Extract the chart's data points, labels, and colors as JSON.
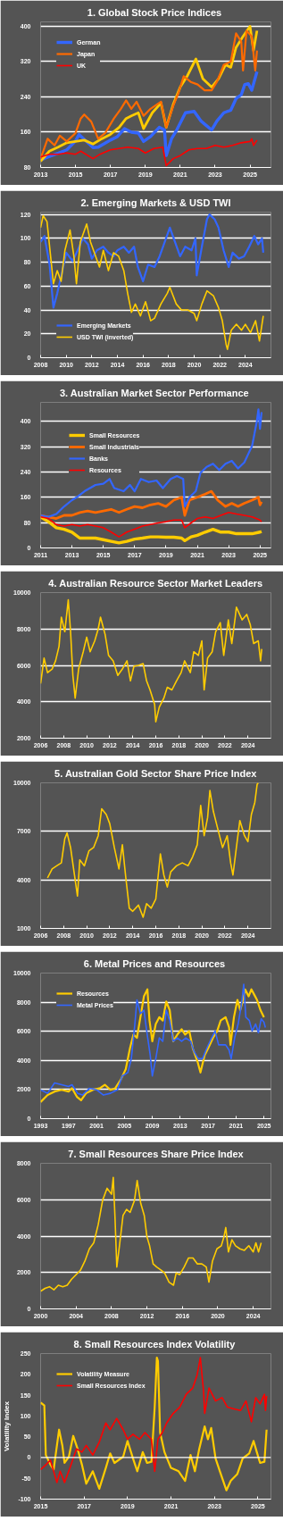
{
  "chart_data": [
    {
      "type": "line",
      "title": "1.  Global Stock Price Indices",
      "xlim": [
        2013,
        2026.2
      ],
      "xticks": [
        2013,
        2015,
        2017,
        2019,
        2021,
        2023,
        2025
      ],
      "ylim": [
        80,
        410
      ],
      "yticks": [
        80,
        160,
        240,
        320,
        400
      ],
      "grid": "y",
      "legend": "top left",
      "series": [
        {
          "name": "German",
          "color": "#3366ff",
          "x": [
            2013.0,
            2013.5,
            2014.0,
            2014.5,
            2015.0,
            2015.2,
            2015.6,
            2016.0,
            2016.3,
            2016.7,
            2017.0,
            2017.4,
            2017.8,
            2018.2,
            2018.6,
            2018.9,
            2019.3,
            2019.8,
            2020.1,
            2020.2,
            2020.5,
            2020.8,
            2021.3,
            2021.8,
            2022.2,
            2022.5,
            2022.8,
            2023.1,
            2023.5,
            2023.9,
            2024.2,
            2024.5,
            2024.7,
            2024.9,
            2025.1,
            2025.4
          ],
          "values": [
            97,
            105,
            112,
            120,
            140,
            155,
            140,
            125,
            126,
            135,
            142,
            150,
            168,
            160,
            158,
            139,
            150,
            171,
            165,
            107,
            145,
            165,
            204,
            207,
            185,
            175,
            165,
            185,
            204,
            210,
            236,
            245,
            268,
            270,
            255,
            297
          ]
        },
        {
          "color": "#ffcc00",
          "x": [
            2013.0,
            2013.5,
            2014.0,
            2014.5,
            2015.0,
            2015.5,
            2016.0,
            2016.5,
            2017.0,
            2017.5,
            2017.9,
            2018.2,
            2018.6,
            2018.9,
            2019.4,
            2019.9,
            2020.2,
            2020.6,
            2021.0,
            2021.4,
            2021.9,
            2022.3,
            2022.8,
            2023.2,
            2023.6,
            2023.9,
            2024.2,
            2024.6,
            2025.0,
            2025.2,
            2025.4
          ],
          "values": [
            94,
            117,
            126,
            136,
            139,
            142,
            133,
            145,
            155,
            171,
            191,
            197,
            204,
            168,
            204,
            226,
            171,
            223,
            262,
            287,
            326,
            281,
            262,
            281,
            313,
            307,
            352,
            377,
            400,
            345,
            390
          ]
        },
        {
          "name": "Japan",
          "color": "#ff6a00",
          "x": [
            2013.0,
            2013.4,
            2013.8,
            2014.1,
            2014.5,
            2015.0,
            2015.3,
            2015.5,
            2015.9,
            2016.3,
            2016.7,
            2017.2,
            2017.6,
            2017.9,
            2018.2,
            2018.5,
            2018.9,
            2019.3,
            2019.9,
            2020.2,
            2020.6,
            2020.9,
            2021.2,
            2021.6,
            2022.0,
            2022.4,
            2022.8,
            2023.1,
            2023.5,
            2023.9,
            2024.2,
            2024.5,
            2024.6,
            2024.8,
            2025.1,
            2025.3,
            2025.4
          ],
          "values": [
            100,
            145,
            130,
            152,
            139,
            158,
            191,
            200,
            184,
            145,
            158,
            191,
            213,
            232,
            213,
            229,
            197,
            213,
            229,
            171,
            220,
            249,
            287,
            274,
            268,
            255,
            255,
            274,
            313,
            320,
            384,
            365,
            300,
            390,
            377,
            300,
            345
          ]
        },
        {
          "name": "UK",
          "color": "#ff0000",
          "x": [
            2013.0,
            2013.5,
            2014.0,
            2014.5,
            2015.0,
            2015.3,
            2016.0,
            2016.4,
            2017.0,
            2017.5,
            2018.0,
            2018.6,
            2019.0,
            2019.5,
            2020.0,
            2020.2,
            2020.6,
            2021.0,
            2021.5,
            2022.0,
            2022.5,
            2023.0,
            2023.5,
            2024.0,
            2024.5,
            2025.0,
            2025.1,
            2025.2,
            2025.4
          ],
          "values": [
            104,
            110,
            110,
            113,
            110,
            117,
            100,
            110,
            120,
            123,
            126,
            123,
            113,
            123,
            126,
            84,
            100,
            107,
            120,
            123,
            123,
            130,
            126,
            130,
            136,
            139,
            145,
            130,
            142
          ]
        }
      ]
    },
    {
      "type": "line",
      "title": "2. Emerging Markets & USD TWI",
      "xlim": [
        2008,
        2026
      ],
      "xticks": [
        2008,
        2010,
        2012,
        2014,
        2016,
        2018,
        2020,
        2022,
        2024
      ],
      "ylim": [
        0,
        122
      ],
      "yticks": [
        0,
        20,
        40,
        60,
        80,
        100,
        120
      ],
      "grid": "y",
      "legend": "bottom left",
      "series": [
        {
          "name": "Emerging Markets",
          "color": "#3366ff",
          "x": [
            2008.0,
            2008.3,
            2008.7,
            2009.0,
            2009.3,
            2009.7,
            2010.0,
            2010.5,
            2010.9,
            2011.3,
            2011.7,
            2012.0,
            2012.4,
            2012.9,
            2013.3,
            2013.7,
            2014.0,
            2014.5,
            2014.9,
            2015.3,
            2015.6,
            2016.0,
            2016.4,
            2016.9,
            2017.3,
            2017.8,
            2018.1,
            2018.5,
            2018.9,
            2019.3,
            2019.8,
            2020.1,
            2020.2,
            2020.6,
            2021.0,
            2021.2,
            2021.6,
            2021.9,
            2022.3,
            2022.7,
            2023.0,
            2023.5,
            2023.9,
            2024.3,
            2024.7,
            2025.0,
            2025.3,
            2025.4
          ],
          "values": [
            97,
            102,
            78,
            42,
            54,
            73,
            88,
            81,
            90,
            100,
            95,
            83,
            90,
            93,
            88,
            85,
            90,
            93,
            88,
            93,
            76,
            64,
            78,
            76,
            85,
            100,
            109,
            97,
            85,
            93,
            90,
            100,
            69,
            93,
            116,
            120,
            116,
            109,
            90,
            76,
            88,
            83,
            85,
            93,
            102,
            95,
            100,
            88
          ]
        },
        {
          "name": "USD TWI (inverted)",
          "color": "#ffcc00",
          "x": [
            2008.0,
            2008.2,
            2008.5,
            2008.8,
            2009.0,
            2009.3,
            2009.6,
            2009.9,
            2010.3,
            2010.6,
            2010.8,
            2011.1,
            2011.6,
            2011.9,
            2012.2,
            2012.6,
            2012.9,
            2013.3,
            2013.7,
            2014.1,
            2014.5,
            2014.8,
            2015.1,
            2015.4,
            2015.8,
            2016.2,
            2016.6,
            2016.9,
            2017.4,
            2017.9,
            2018.1,
            2018.6,
            2019.0,
            2019.5,
            2020.0,
            2020.2,
            2020.6,
            2021.0,
            2021.5,
            2021.9,
            2022.2,
            2022.5,
            2022.6,
            2022.9,
            2023.3,
            2023.7,
            2024.0,
            2024.4,
            2024.8,
            2025.1,
            2025.4
          ],
          "values": [
            109,
            119,
            114,
            83,
            62,
            73,
            64,
            90,
            107,
            85,
            62,
            97,
            112,
            97,
            88,
            76,
            90,
            73,
            88,
            85,
            73,
            54,
            38,
            45,
            35,
            47,
            31,
            33,
            45,
            54,
            59,
            45,
            40,
            40,
            37,
            31,
            45,
            56,
            52,
            42,
            31,
            11,
            7,
            23,
            28,
            23,
            28,
            21,
            31,
            14,
            35
          ]
        }
      ]
    },
    {
      "type": "line",
      "title": "3.  Australian Market Sector Performance",
      "xlim": [
        2011,
        2025.7
      ],
      "xticks": [
        2011,
        2013,
        2015,
        2017,
        2019,
        2021,
        2023,
        2025
      ],
      "ylim": [
        0,
        460
      ],
      "yticks": [
        0,
        80,
        160,
        240,
        320,
        400
      ],
      "grid": "y",
      "legend": "top left",
      "series": [
        {
          "name": "Small Resources",
          "color": "#ffcc00",
          "x": [
            2011.0,
            2011.5,
            2012.0,
            2012.5,
            2013.0,
            2013.5,
            2014.0,
            2014.5,
            2015.0,
            2015.5,
            2016.0,
            2016.5,
            2017.0,
            2017.5,
            2018.0,
            2018.5,
            2019.0,
            2019.5,
            2020.0,
            2020.2,
            2020.6,
            2021.0,
            2021.5,
            2022.0,
            2022.5,
            2023.0,
            2023.5,
            2024.0,
            2024.5,
            2025.0,
            2025.1
          ],
          "values": [
            98,
            83,
            64,
            59,
            50,
            31,
            31,
            31,
            26,
            21,
            16,
            21,
            28,
            31,
            35,
            35,
            34,
            34,
            31,
            23,
            35,
            40,
            50,
            59,
            50,
            50,
            45,
            45,
            45,
            50,
            52
          ]
        },
        {
          "name": "Small Industrials",
          "color": "#ff6a00",
          "x": [
            2011.0,
            2011.5,
            2012.0,
            2012.5,
            2013.0,
            2013.5,
            2014.0,
            2014.5,
            2015.0,
            2015.5,
            2016.0,
            2016.5,
            2017.0,
            2017.5,
            2018.0,
            2018.5,
            2019.0,
            2019.5,
            2020.0,
            2020.2,
            2020.5,
            2021.0,
            2021.5,
            2021.9,
            2022.3,
            2022.8,
            2023.2,
            2023.6,
            2024.0,
            2024.5,
            2024.9,
            2025.0,
            2025.1
          ],
          "values": [
            103,
            98,
            93,
            103,
            103,
            112,
            117,
            112,
            117,
            122,
            112,
            122,
            131,
            127,
            136,
            141,
            131,
            151,
            160,
            103,
            151,
            160,
            170,
            179,
            151,
            131,
            141,
            131,
            141,
            151,
            160,
            136,
            146
          ]
        },
        {
          "name": "Banks",
          "color": "#3366ff",
          "x": [
            2011.0,
            2011.5,
            2012.0,
            2012.5,
            2013.0,
            2013.3,
            2013.8,
            2014.5,
            2015.0,
            2015.4,
            2015.7,
            2016.3,
            2016.7,
            2017.0,
            2017.4,
            2017.9,
            2018.4,
            2018.8,
            2019.3,
            2019.7,
            2020.1,
            2020.2,
            2020.5,
            2020.9,
            2021.2,
            2021.6,
            2022.0,
            2022.4,
            2022.8,
            2023.2,
            2023.6,
            2024.0,
            2024.5,
            2024.8,
            2024.9,
            2025.0,
            2025.1
          ],
          "values": [
            103,
            98,
            107,
            131,
            151,
            160,
            179,
            199,
            203,
            218,
            189,
            179,
            199,
            179,
            218,
            208,
            213,
            189,
            218,
            227,
            218,
            131,
            160,
            179,
            237,
            256,
            266,
            246,
            266,
            275,
            251,
            270,
            323,
            400,
            438,
            376,
            429
          ]
        },
        {
          "name": "Resources",
          "color": "#ff0000",
          "x": [
            2011.0,
            2011.5,
            2012.0,
            2012.5,
            2013.0,
            2013.5,
            2014.0,
            2014.5,
            2015.0,
            2015.5,
            2016.0,
            2016.5,
            2017.0,
            2017.5,
            2018.0,
            2018.5,
            2019.0,
            2019.5,
            2020.0,
            2020.2,
            2020.6,
            2021.0,
            2021.5,
            2022.0,
            2022.5,
            2023.0,
            2023.5,
            2024.0,
            2024.5,
            2025.0,
            2025.1
          ],
          "values": [
            98,
            93,
            74,
            69,
            74,
            69,
            74,
            69,
            64,
            50,
            35,
            50,
            59,
            69,
            74,
            79,
            83,
            88,
            88,
            64,
            79,
            93,
            98,
            93,
            103,
            112,
            107,
            103,
            98,
            88,
            83
          ]
        }
      ]
    },
    {
      "type": "line",
      "title": "4. Australian Resource Sector Market Leaders",
      "xlim": [
        2006,
        2026
      ],
      "xticks": [
        2006,
        2008,
        2010,
        2012,
        2014,
        2016,
        2018,
        2020,
        2022,
        2024
      ],
      "ylim": [
        2000,
        10000
      ],
      "yticks": [
        2000,
        4000,
        6000,
        8000,
        10000
      ],
      "grid": "y",
      "series": [
        {
          "color": "#ffcc00",
          "x": [
            2006.0,
            2006.3,
            2006.6,
            2007.0,
            2007.3,
            2007.6,
            2007.8,
            2008.1,
            2008.4,
            2008.6,
            2008.8,
            2009.0,
            2009.3,
            2009.7,
            2010.0,
            2010.3,
            2010.7,
            2011.0,
            2011.2,
            2011.6,
            2011.9,
            2012.3,
            2012.7,
            2013.1,
            2013.5,
            2013.8,
            2014.1,
            2014.5,
            2014.9,
            2015.2,
            2015.5,
            2015.9,
            2016.0,
            2016.3,
            2016.7,
            2017.0,
            2017.4,
            2017.8,
            2018.2,
            2018.5,
            2019.0,
            2019.3,
            2019.7,
            2020.0,
            2020.2,
            2020.5,
            2020.9,
            2021.2,
            2021.6,
            2021.9,
            2022.3,
            2022.6,
            2022.9,
            2023.0,
            2023.5,
            2023.9,
            2024.2,
            2024.5,
            2024.9,
            2025.1,
            2025.2
          ],
          "values": [
            5000,
            6400,
            5600,
            5800,
            6250,
            7050,
            8650,
            7850,
            9600,
            7850,
            5450,
            4200,
            5800,
            6750,
            7550,
            6750,
            7350,
            8000,
            8650,
            7700,
            6550,
            6250,
            5450,
            5800,
            6250,
            5150,
            5950,
            6000,
            6100,
            5150,
            4650,
            3850,
            2900,
            3700,
            4200,
            4800,
            4650,
            5150,
            5600,
            6250,
            5600,
            6750,
            6550,
            7350,
            4650,
            6400,
            6750,
            7850,
            8350,
            6550,
            8500,
            7200,
            8650,
            9200,
            8500,
            8800,
            8250,
            7200,
            7350,
            6250,
            6900
          ]
        }
      ]
    },
    {
      "type": "line",
      "title": "5. Australian Gold Sector Share Price Index",
      "xlim": [
        2006,
        2026
      ],
      "xticks": [
        2006,
        2008,
        2010,
        2012,
        2014,
        2016,
        2018,
        2020,
        2022,
        2024
      ],
      "ylim": [
        1000,
        10000
      ],
      "yticks": [
        1000,
        4000,
        7000,
        10000
      ],
      "grid": "y",
      "series": [
        {
          "color": "#ffcc00",
          "x": [
            2006.6,
            2007.0,
            2007.4,
            2007.8,
            2008.1,
            2008.3,
            2008.6,
            2008.9,
            2009.2,
            2009.4,
            2009.8,
            2010.2,
            2010.6,
            2011.0,
            2011.3,
            2011.7,
            2012.0,
            2012.4,
            2012.8,
            2013.1,
            2013.4,
            2013.7,
            2014.0,
            2014.5,
            2014.9,
            2015.2,
            2015.6,
            2016.0,
            2016.4,
            2016.7,
            2017.0,
            2017.3,
            2017.8,
            2018.3,
            2018.8,
            2019.2,
            2019.6,
            2019.9,
            2020.2,
            2020.5,
            2020.7,
            2021.0,
            2021.4,
            2021.8,
            2022.2,
            2022.5,
            2022.7,
            2023.0,
            2023.3,
            2023.7,
            2024.0,
            2024.3,
            2024.6,
            2024.8,
            2024.9
          ],
          "values": [
            4120,
            4680,
            4870,
            5050,
            6550,
            6900,
            6000,
            4500,
            3000,
            5240,
            4870,
            5800,
            6000,
            6730,
            8400,
            8040,
            7480,
            6000,
            4680,
            6170,
            4120,
            2250,
            2060,
            2440,
            1690,
            2530,
            2250,
            2810,
            5610,
            4300,
            3560,
            4500,
            4870,
            5050,
            4870,
            5430,
            6170,
            8600,
            6730,
            7850,
            9530,
            8230,
            7110,
            6000,
            6730,
            5050,
            4300,
            6000,
            7670,
            6730,
            6360,
            8040,
            8790,
            9900,
            10000
          ]
        }
      ]
    },
    {
      "type": "line",
      "title": "6.  Metal Prices and Resources",
      "xlim": [
        1993,
        2026
      ],
      "xticks": [
        1993,
        1997,
        2001,
        2005,
        2009,
        2013,
        2017,
        2021,
        2025
      ],
      "ylim": [
        0,
        10000
      ],
      "yticks": [
        0,
        2000,
        4000,
        6000,
        8000,
        10000
      ],
      "grid": "y",
      "legend": "top left",
      "series": [
        {
          "name": "Resources",
          "color": "#ffcc00",
          "x": [
            1993.0,
            1994.0,
            1995.0,
            1996.0,
            1997.0,
            1997.5,
            1998.2,
            1998.8,
            1999.5,
            2000.5,
            2001.5,
            2002.2,
            2003.0,
            2003.7,
            2004.5,
            2005.2,
            2005.8,
            2006.3,
            2006.8,
            2007.3,
            2007.8,
            2008.3,
            2008.6,
            2009.0,
            2009.5,
            2010.0,
            2010.5,
            2011.0,
            2011.5,
            2012.0,
            2012.6,
            2013.2,
            2013.7,
            2014.3,
            2014.8,
            2015.5,
            2015.9,
            2016.5,
            2017.0,
            2017.7,
            2018.3,
            2018.8,
            2019.5,
            2020.0,
            2020.2,
            2020.7,
            2021.2,
            2021.6,
            2022.0,
            2022.3,
            2022.8,
            2023.2,
            2023.6,
            2024.0,
            2024.5,
            2025.0
          ],
          "values": [
            1140,
            1620,
            1860,
            1980,
            1860,
            2090,
            1500,
            1260,
            1740,
            1980,
            2090,
            2330,
            1980,
            2090,
            2690,
            3400,
            4830,
            5780,
            5550,
            6970,
            8400,
            8880,
            6740,
            5310,
            6500,
            6970,
            6740,
            8040,
            7450,
            5310,
            5780,
            6140,
            5780,
            6020,
            4830,
            3880,
            3170,
            4360,
            4830,
            5550,
            6020,
            6740,
            6970,
            6260,
            5070,
            6970,
            8160,
            7450,
            8160,
            8880,
            8400,
            8880,
            8520,
            8160,
            7450,
            6970
          ]
        },
        {
          "name": "Metal Prices",
          "color": "#3366ff",
          "x": [
            1993.0,
            1994.0,
            1995.0,
            1996.0,
            1997.0,
            1997.5,
            1998.3,
            1999.0,
            2000.0,
            2001.0,
            2002.0,
            2003.0,
            2004.0,
            2004.7,
            2005.5,
            2006.0,
            2006.5,
            2006.8,
            2007.3,
            2007.8,
            2008.2,
            2008.7,
            2009.0,
            2009.5,
            2010.0,
            2010.5,
            2011.0,
            2011.5,
            2012.0,
            2012.6,
            2013.2,
            2013.8,
            2014.5,
            2015.0,
            2015.6,
            2016.2,
            2016.8,
            2017.5,
            2018.0,
            2018.5,
            2019.0,
            2019.5,
            2020.0,
            2020.3,
            2020.8,
            2021.3,
            2021.8,
            2022.1,
            2022.4,
            2022.9,
            2023.3,
            2023.8,
            2024.2,
            2024.6,
            2025.0,
            2025.2
          ],
          "values": [
            1980,
            1740,
            2450,
            2330,
            2210,
            2330,
            1740,
            1620,
            2090,
            1980,
            1620,
            1740,
            1980,
            2930,
            3170,
            4120,
            6500,
            8160,
            7210,
            7450,
            6020,
            4360,
            2930,
            4120,
            5550,
            5310,
            7450,
            6740,
            5310,
            5550,
            5310,
            5550,
            5310,
            4590,
            4120,
            4120,
            4830,
            5550,
            6020,
            5070,
            5070,
            5070,
            4710,
            4120,
            5550,
            6500,
            7930,
            9230,
            6970,
            6740,
            6020,
            6500,
            5900,
            6850,
            6620,
            6260
          ]
        }
      ]
    },
    {
      "type": "line",
      "title": "7. Small Resources Share Price Index",
      "xlim": [
        2000,
        2026
      ],
      "xticks": [
        2000,
        2004,
        2008,
        2012,
        2016,
        2020,
        2024
      ],
      "ylim": [
        0,
        8000
      ],
      "yticks": [
        0,
        2000,
        4000,
        6000,
        8000
      ],
      "grid": "y",
      "series": [
        {
          "color": "#ffcc00",
          "x": [
            2000.0,
            2000.5,
            2001.0,
            2001.5,
            2002.0,
            2002.5,
            2003.0,
            2003.5,
            2004.0,
            2004.5,
            2005.0,
            2005.5,
            2006.0,
            2006.5,
            2007.0,
            2007.5,
            2008.0,
            2008.2,
            2008.4,
            2008.6,
            2008.9,
            2009.3,
            2009.7,
            2010.1,
            2010.6,
            2010.9,
            2011.3,
            2011.7,
            2012.0,
            2012.3,
            2012.7,
            2013.1,
            2013.6,
            2014.0,
            2014.5,
            2015.0,
            2015.3,
            2015.7,
            2016.2,
            2016.7,
            2017.2,
            2017.7,
            2018.2,
            2018.7,
            2019.0,
            2019.4,
            2019.9,
            2020.4,
            2020.7,
            2020.9,
            2021.2,
            2021.6,
            2022.0,
            2022.5,
            2023.0,
            2023.5,
            2024.0,
            2024.3,
            2024.6,
            2024.9
          ],
          "values": [
            970,
            1130,
            1220,
            1050,
            1300,
            1220,
            1300,
            1630,
            1880,
            2130,
            2630,
            3300,
            3630,
            4630,
            5970,
            6630,
            6300,
            7220,
            4970,
            2300,
            3470,
            5130,
            5470,
            5300,
            5970,
            7050,
            5800,
            5130,
            3970,
            3470,
            2470,
            2300,
            2130,
            1970,
            1470,
            1300,
            1970,
            1880,
            2300,
            2800,
            2800,
            2470,
            2470,
            2300,
            1470,
            2630,
            3300,
            3470,
            3970,
            4470,
            3130,
            3800,
            3470,
            3300,
            3220,
            3470,
            3130,
            3630,
            3130,
            3630
          ]
        }
      ]
    },
    {
      "type": "line",
      "title": "8.  Small Resources Index Volatility",
      "ylabel": "Volatility Index",
      "xlim": [
        2015,
        2025.6
      ],
      "xticks": [
        2015,
        2017,
        2019,
        2021,
        2023,
        2025
      ],
      "ylim": [
        -100,
        250
      ],
      "yticks": [
        -100,
        -50,
        0,
        50,
        100,
        150,
        200,
        250
      ],
      "legend": "top left",
      "ref_lines": [
        {
          "axis": "y",
          "value": 0,
          "color": "#ffffff"
        }
      ],
      "series": [
        {
          "name": "Volatility Measure",
          "color": "#ffcc00",
          "x": [
            2015.0,
            2015.17,
            2015.24,
            2015.45,
            2015.6,
            2015.85,
            2016.0,
            2016.1,
            2016.3,
            2016.5,
            2016.7,
            2016.9,
            2017.1,
            2017.4,
            2017.7,
            2018.0,
            2018.2,
            2018.4,
            2018.8,
            2019.0,
            2019.25,
            2019.45,
            2019.7,
            2019.9,
            2020.1,
            2020.25,
            2020.35,
            2020.4,
            2020.5,
            2020.7,
            2021.0,
            2021.35,
            2021.65,
            2021.9,
            2022.1,
            2022.3,
            2022.55,
            2022.7,
            2022.85,
            2023.05,
            2023.25,
            2023.55,
            2023.75,
            2024.05,
            2024.3,
            2024.6,
            2024.8,
            2024.95,
            2025.1,
            2025.3,
            2025.4
          ],
          "values": [
            132,
            125,
            6,
            -17,
            -29,
            67,
            29,
            -13,
            2,
            52,
            21,
            -17,
            -63,
            -33,
            -75,
            -25,
            10,
            -13,
            2,
            40,
            -2,
            -33,
            13,
            -13,
            -10,
            121,
            240,
            232,
            60,
            13,
            -25,
            -33,
            -56,
            6,
            -33,
            21,
            75,
            44,
            71,
            -2,
            -33,
            -79,
            -56,
            -40,
            -2,
            10,
            40,
            13,
            -13,
            -10,
            67
          ]
        },
        {
          "name": "Small Resources Index",
          "color": "#ff0000",
          "x": [
            2015.0,
            2015.25,
            2015.45,
            2015.75,
            2015.9,
            2016.1,
            2016.35,
            2016.65,
            2016.9,
            2017.1,
            2017.4,
            2017.7,
            2018.0,
            2018.2,
            2018.5,
            2018.8,
            2019.0,
            2019.25,
            2019.55,
            2019.8,
            2020.1,
            2020.25,
            2020.4,
            2020.6,
            2020.8,
            2021.1,
            2021.4,
            2021.7,
            2022.0,
            2022.2,
            2022.35,
            2022.5,
            2022.55,
            2022.75,
            2023.05,
            2023.35,
            2023.6,
            2023.9,
            2024.2,
            2024.45,
            2024.7,
            2024.9,
            2025.1,
            2025.3,
            2025.35,
            2025.4
          ],
          "values": [
            -29,
            -17,
            -6,
            -60,
            -33,
            -60,
            -25,
            21,
            13,
            29,
            6,
            37,
            83,
            67,
            94,
            67,
            44,
            56,
            44,
            60,
            44,
            -33,
            44,
            60,
            83,
            106,
            121,
            152,
            167,
            198,
            240,
            159,
            106,
            167,
            136,
            144,
            121,
            117,
            113,
            136,
            86,
            144,
            129,
            152,
            113,
            148
          ]
        }
      ]
    }
  ]
}
